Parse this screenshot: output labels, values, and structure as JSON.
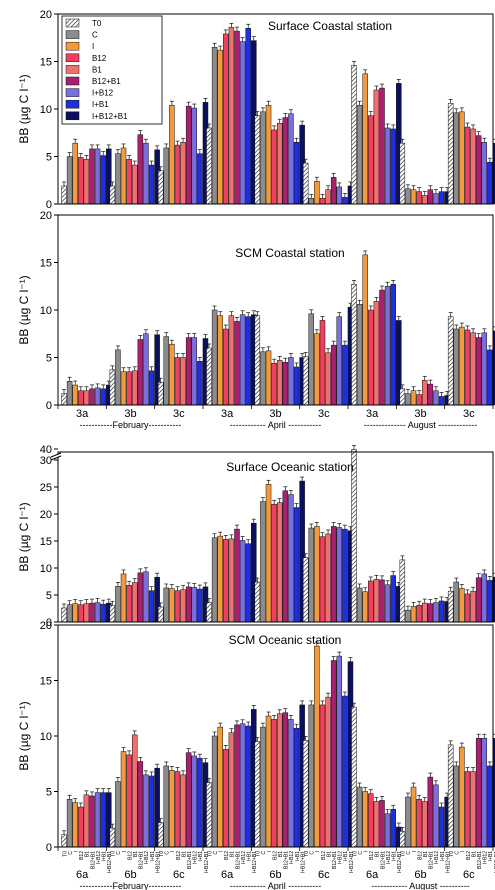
{
  "legend": {
    "entries": [
      "T0",
      "C",
      "I",
      "B12",
      "B1",
      "B12+B1",
      "I+B12",
      "I+B1",
      "I+B12+B1"
    ],
    "colors": [
      "#ffffff",
      "#8c8c8c",
      "#f59a3c",
      "#f0405e",
      "#f07070",
      "#a8206f",
      "#7b6fe0",
      "#1e2fe0",
      "#0a0f5e"
    ],
    "hatched_first": true
  },
  "x_labels": {
    "coastal_stations": [
      "3a",
      "3b",
      "3c",
      "3a",
      "3b",
      "3c",
      "3a",
      "3b",
      "3c"
    ],
    "coastal_months": [
      "-----------February-----------",
      "------------ April -----------",
      "-------------- August -------------"
    ],
    "oceanic_stations": [
      "6a",
      "6b",
      "6c",
      "6a",
      "6b",
      "6c",
      "6a",
      "6b",
      "6c"
    ],
    "oceanic_months": [
      "-----------February-----------",
      "------------ April -----------",
      "------------ August ----------"
    ],
    "rotated_treatments": [
      "T0",
      "C",
      "I",
      "B12",
      "B1",
      "B12+B1",
      "I+B12",
      "I+B1",
      "I+B12+B1"
    ]
  },
  "chart_data": [
    {
      "type": "bar",
      "title": "Surface Coastal station",
      "ylabel": "BB (µg C l⁻¹)",
      "ylim": [
        0,
        20
      ],
      "yticks": [
        "0",
        "5",
        "10",
        "15",
        "20"
      ],
      "groups": [
        "3a",
        "3b",
        "3c",
        "3a",
        "3b",
        "3c",
        "3a",
        "3b",
        "3c"
      ],
      "months": [
        "February",
        "April",
        "August"
      ],
      "series_names": [
        "T0",
        "C",
        "I",
        "B12",
        "B1",
        "B12+B1",
        "I+B12",
        "I+B1",
        "I+B12+B1"
      ],
      "values": [
        [
          1.9,
          5.0,
          6.4,
          4.9,
          4.7,
          5.8,
          5.8,
          5.1,
          5.8
        ],
        [
          1.9,
          5.3,
          5.9,
          4.7,
          4.1,
          7.3,
          6.4,
          4.1,
          5.7
        ],
        [
          3.5,
          5.9,
          10.4,
          6.2,
          6.5,
          10.3,
          10.1,
          5.3,
          10.7
        ],
        [
          8.0,
          16.5,
          16.2,
          17.9,
          18.6,
          18.2,
          17.1,
          18.5,
          17.2
        ],
        [
          9.3,
          9.7,
          10.4,
          7.8,
          8.5,
          9.1,
          9.5,
          6.5,
          8.3
        ],
        [
          4.3,
          0.6,
          2.4,
          0.6,
          1.5,
          2.8,
          1.8,
          0.7,
          1.9
        ],
        [
          14.6,
          10.4,
          13.7,
          9.3,
          12.0,
          12.2,
          8.0,
          7.9,
          12.7
        ],
        [
          6.4,
          1.6,
          1.5,
          1.3,
          0.9,
          1.5,
          1.1,
          1.3,
          1.3
        ],
        [
          10.6,
          9.6,
          9.7,
          8.1,
          7.9,
          7.2,
          6.5,
          4.4,
          6.4
        ]
      ]
    },
    {
      "type": "bar",
      "title": "SCM Coastal station",
      "ylabel": "BB (µg C l⁻¹)",
      "ylim": [
        0,
        20
      ],
      "yticks": [
        "0",
        "5",
        "10",
        "15",
        "20"
      ],
      "groups": [
        "3a",
        "3b",
        "3c",
        "3a",
        "3b",
        "3c",
        "3a",
        "3b",
        "3c"
      ],
      "months": [
        "February",
        "April",
        "August"
      ],
      "series_names": [
        "T0",
        "C",
        "I",
        "B12",
        "B1",
        "B12+B1",
        "I+B12",
        "I+B1",
        "I+B12+B1"
      ],
      "values": [
        [
          1.2,
          2.5,
          2.1,
          1.5,
          1.5,
          1.7,
          1.8,
          1.7,
          2.1
        ],
        [
          3.7,
          5.8,
          3.5,
          3.5,
          3.6,
          6.9,
          7.5,
          3.6,
          7.4
        ],
        [
          2.4,
          7.2,
          6.4,
          5.0,
          5.0,
          7.1,
          7.1,
          4.6,
          7.0
        ],
        [
          6.0,
          10.0,
          9.4,
          8.0,
          9.4,
          8.8,
          9.5,
          9.3,
          9.5
        ],
        [
          9.4,
          5.6,
          5.7,
          4.4,
          4.7,
          4.5,
          5.0,
          4.0,
          5.0
        ],
        [
          5.1,
          9.6,
          7.5,
          8.9,
          5.5,
          6.3,
          9.3,
          6.3,
          10.3
        ],
        [
          12.7,
          10.6,
          15.8,
          10.0,
          10.9,
          12.1,
          12.5,
          12.7,
          8.9
        ],
        [
          1.7,
          1.2,
          1.5,
          1.1,
          2.6,
          2.2,
          1.5,
          0.9,
          1.0
        ],
        [
          9.3,
          8.0,
          8.2,
          7.9,
          7.6,
          7.1,
          7.6,
          5.8,
          7.8
        ]
      ]
    },
    {
      "type": "bar",
      "title": "Surface Oceanic station",
      "ylabel": "BB (µg C l⁻¹)",
      "ylim": [
        0,
        40
      ],
      "axis_break": [
        30,
        40
      ],
      "yticks": [
        "0",
        "5",
        "10",
        "15",
        "20",
        "25",
        "30",
        "40"
      ],
      "groups": [
        "6a",
        "6b",
        "6c",
        "6a",
        "6b",
        "6c",
        "6a",
        "6b",
        "6c"
      ],
      "months": [
        "February",
        "April",
        "August"
      ],
      "series_names": [
        "T0",
        "C",
        "I",
        "B12",
        "B1",
        "B12+B1",
        "I+B12",
        "I+B1",
        "I+B12+B1"
      ],
      "values": [
        [
          2.6,
          3.2,
          3.4,
          3.2,
          3.4,
          3.5,
          3.6,
          3.3,
          3.5
        ],
        [
          3.1,
          6.6,
          8.9,
          6.8,
          7.3,
          9.1,
          9.3,
          5.8,
          8.3
        ],
        [
          2.8,
          6.3,
          6.2,
          5.8,
          6.0,
          6.5,
          6.4,
          6.1,
          6.5
        ],
        [
          3.6,
          15.6,
          15.9,
          15.3,
          15.4,
          17.2,
          15.1,
          14.5,
          18.3
        ],
        [
          7.4,
          22.3,
          25.5,
          21.8,
          22.1,
          24.3,
          23.6,
          21.2,
          26.1
        ],
        [
          11.9,
          17.4,
          17.7,
          15.8,
          16.3,
          17.7,
          17.5,
          17.2,
          16.9
        ],
        [
          39.0,
          6.3,
          5.6,
          7.6,
          7.9,
          7.8,
          6.9,
          8.6,
          6.6
        ],
        [
          11.5,
          2.2,
          2.9,
          3.1,
          3.5,
          3.4,
          3.6,
          3.9,
          3.8
        ],
        [
          5.7,
          7.4,
          6.2,
          5.2,
          5.7,
          8.2,
          8.9,
          7.7,
          8.3
        ]
      ]
    },
    {
      "type": "bar",
      "title": "SCM Oceanic station",
      "ylabel": "BB (µg C l⁻¹)",
      "ylim": [
        0,
        20
      ],
      "yticks": [
        "0",
        "5",
        "10",
        "15",
        "20"
      ],
      "groups": [
        "6a",
        "6b",
        "6c",
        "6a",
        "6b",
        "6c",
        "6a",
        "6b",
        "6c"
      ],
      "months": [
        "February",
        "April",
        "August"
      ],
      "series_names": [
        "T0",
        "C",
        "I",
        "B12",
        "B1",
        "B12+B1",
        "I+B12",
        "I+B1",
        "I+B12+B1"
      ],
      "values": [
        [
          1.1,
          4.3,
          4.0,
          3.6,
          4.7,
          4.6,
          4.9,
          4.9,
          4.9
        ],
        [
          1.7,
          5.9,
          8.6,
          8.3,
          10.1,
          7.7,
          6.5,
          6.4,
          7.1
        ],
        [
          2.2,
          7.3,
          6.9,
          6.8,
          6.5,
          8.5,
          8.2,
          8.0,
          7.6
        ],
        [
          5.8,
          10.0,
          10.8,
          8.8,
          10.3,
          11.0,
          11.1,
          10.9,
          12.4
        ],
        [
          9.5,
          10.8,
          11.8,
          11.5,
          12.0,
          12.1,
          11.5,
          10.7,
          12.8
        ],
        [
          9.6,
          12.8,
          18.1,
          12.8,
          13.5,
          16.8,
          17.2,
          13.6,
          16.7
        ],
        [
          12.6,
          5.4,
          5.0,
          4.8,
          4.1,
          4.2,
          3.0,
          3.4,
          1.8
        ],
        [
          1.4,
          4.5,
          5.4,
          4.3,
          4.1,
          6.3,
          5.6,
          3.6,
          4.5
        ],
        [
          9.2,
          7.3,
          9.0,
          6.8,
          6.8,
          9.8,
          9.8,
          7.3,
          9.8
        ]
      ]
    }
  ]
}
